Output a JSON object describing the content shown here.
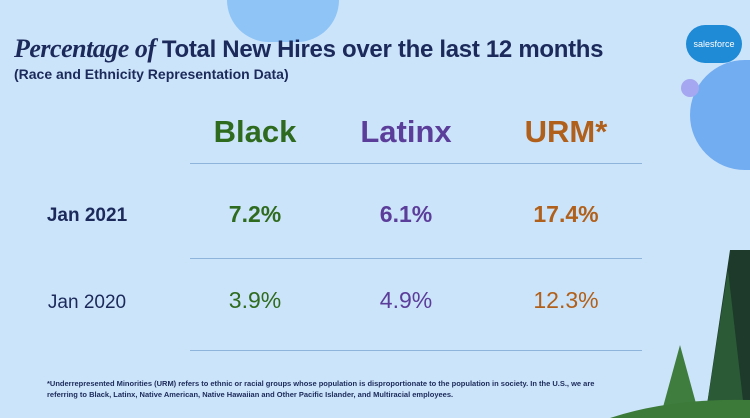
{
  "title": {
    "script": "Percentage of",
    "main": "Total New Hires over the last 12 months"
  },
  "subtitle": "(Race and Ethnicity Representation Data)",
  "logo": "salesforce",
  "columns": [
    {
      "label": "Black",
      "color": "#2e6b1f"
    },
    {
      "label": "Latinx",
      "color": "#5b3d9a"
    },
    {
      "label": "URM*",
      "color": "#b0601a"
    }
  ],
  "rows": [
    {
      "label": "Jan 2021",
      "values": [
        "7.2%",
        "6.1%",
        "17.4%"
      ]
    },
    {
      "label": "Jan 2020",
      "values": [
        "3.9%",
        "4.9%",
        "12.3%"
      ]
    }
  ],
  "footnote": "*Underrepresented Minorities (URM) refers to ethnic or racial groups whose population is disproportionate to the population in society. In the U.S., we are referring to Black, Latinx, Native American, Native Hawaiian and Other Pacific Islander, and Multiracial employees."
}
